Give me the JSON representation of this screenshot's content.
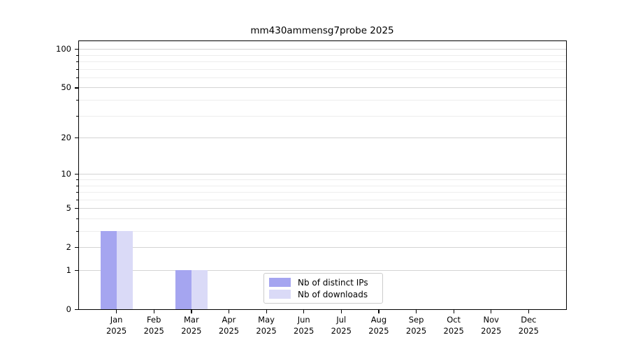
{
  "chart_data": {
    "type": "bar",
    "title": "mm430ammensg7probe 2025",
    "scale": "log1p",
    "categories": [
      "Jan 2025",
      "Feb 2025",
      "Mar 2025",
      "Apr 2025",
      "May 2025",
      "Jun 2025",
      "Jul 2025",
      "Aug 2025",
      "Sep 2025",
      "Oct 2025",
      "Nov 2025",
      "Dec 2025"
    ],
    "series": [
      {
        "name": "Nb of distinct IPs",
        "color": "#a5a5f0",
        "values": [
          3,
          0,
          1,
          0,
          0,
          0,
          0,
          0,
          0,
          0,
          0,
          0
        ]
      },
      {
        "name": "Nb of downloads",
        "color": "#dadaf7",
        "values": [
          3,
          0,
          1,
          0,
          0,
          0,
          0,
          0,
          0,
          0,
          0,
          0
        ]
      }
    ],
    "y_major_ticks": [
      0,
      1,
      2,
      5,
      10,
      20,
      50,
      100
    ],
    "y_minor_ticks": [
      3,
      4,
      6,
      7,
      8,
      9,
      30,
      40,
      60,
      70,
      80,
      90
    ],
    "ylim": [
      0,
      115
    ],
    "grid": true,
    "legend_position": "lower center",
    "colors": {
      "grid_major": "#d4d4d4",
      "grid_minor": "#ededed",
      "axis": "#000000",
      "legend_border": "#cccccc"
    }
  }
}
